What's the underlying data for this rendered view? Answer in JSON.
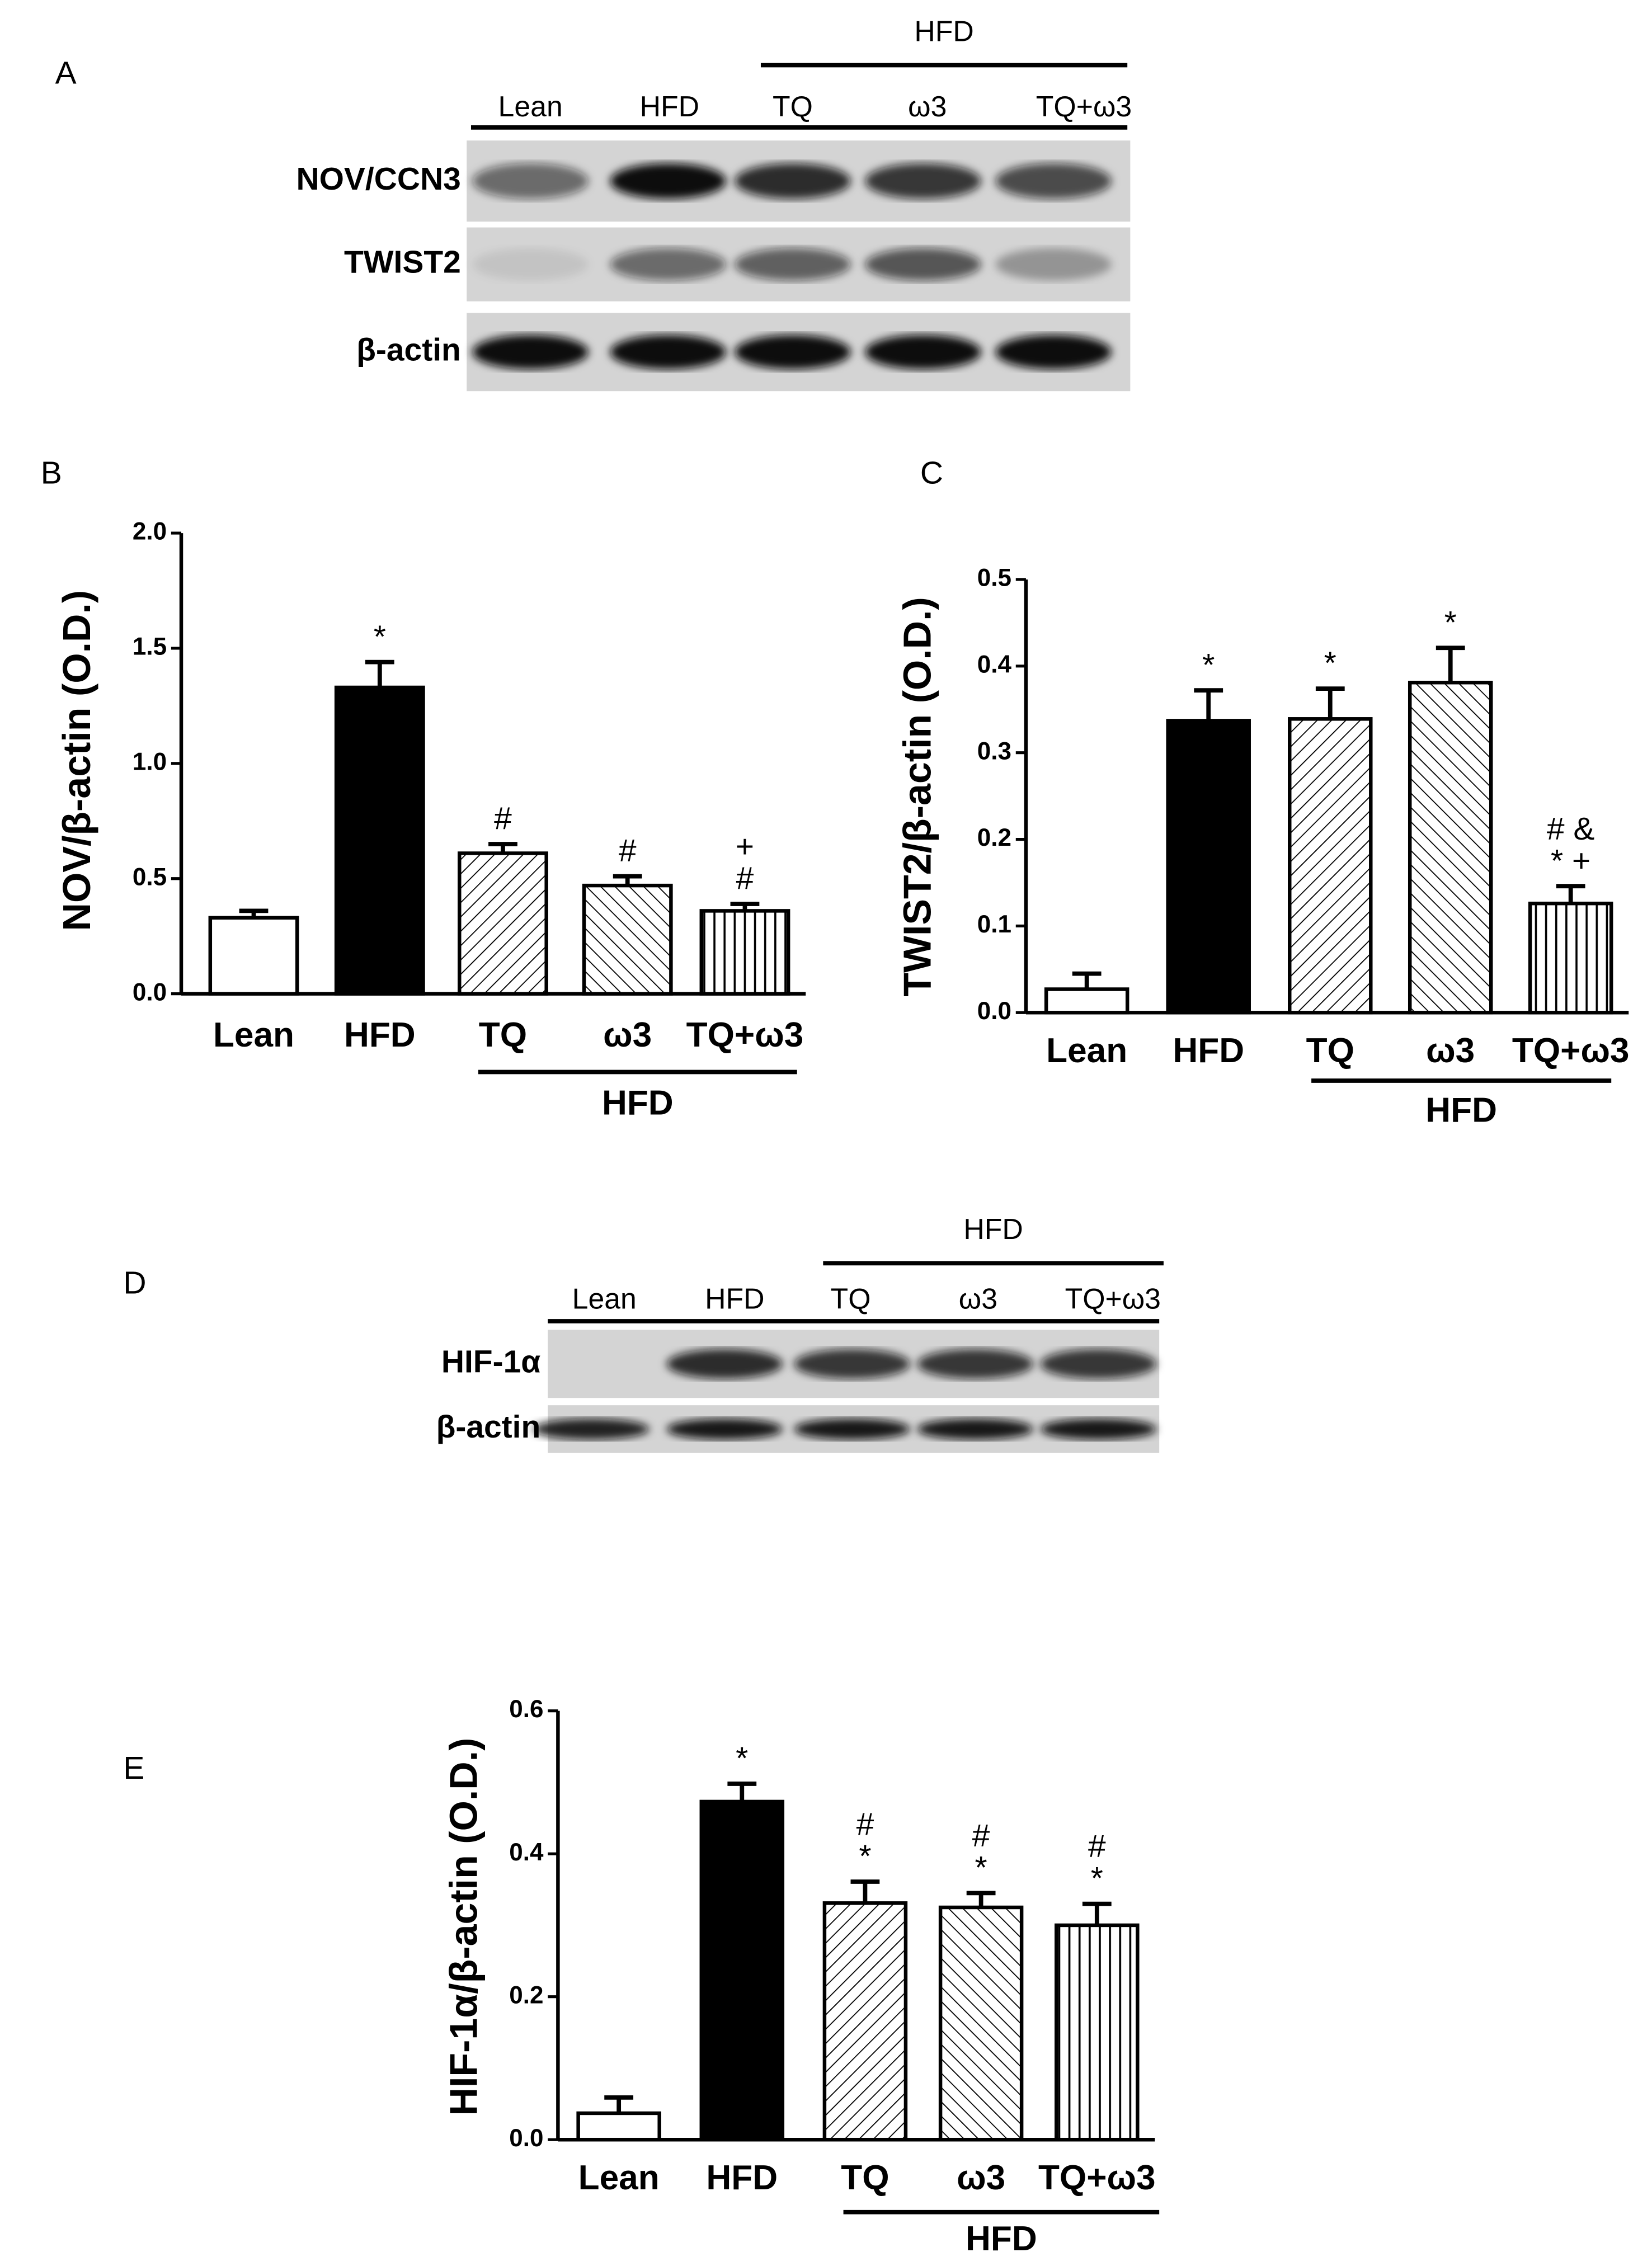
{
  "panel_labels": [
    "A",
    "B",
    "C",
    "D",
    "E"
  ],
  "blots": [
    {
      "group": "HFD",
      "lanes": [
        "Lean",
        "HFD",
        "TQ",
        "ω3",
        "TQ+ω3"
      ],
      "rows": [
        "NOV/CCN3",
        "TWIST2",
        "β-actin"
      ]
    },
    {
      "group": "HFD",
      "lanes": [
        "Lean",
        "HFD",
        "TQ",
        "ω3",
        "TQ+ω3"
      ],
      "rows": [
        "HIF-1α",
        "β-actin"
      ]
    }
  ],
  "chart_data": [
    {
      "type": "bar",
      "y_label": "NOV/β-actin (O.D.)",
      "categories": [
        "Lean",
        "HFD",
        "TQ",
        "ω3",
        "TQ+ω3"
      ],
      "values": [
        0.33,
        1.33,
        0.61,
        0.47,
        0.36
      ],
      "errors": [
        0.03,
        0.11,
        0.04,
        0.04,
        0.03
      ],
      "annotations": [
        null,
        [
          "*"
        ],
        [
          "#"
        ],
        [
          "#"
        ],
        [
          "+",
          "#"
        ]
      ],
      "group_label": "HFD",
      "fills": [
        "white",
        "black",
        "hatch-up",
        "hatch-down",
        "vertical"
      ],
      "ylim": [
        0,
        2.0
      ],
      "yticks": [
        {
          "value": 0,
          "label": "0.0"
        },
        {
          "value": 0.5,
          "label": "0.5"
        },
        {
          "value": 1,
          "label": "1.0"
        },
        {
          "value": 1.5,
          "label": "1.5"
        },
        {
          "value": 2,
          "label": "2.0"
        }
      ]
    },
    {
      "type": "bar",
      "y_label": "TWIST2/β-actin (O.D.)",
      "categories": [
        "Lean",
        "HFD",
        "TQ",
        "ω3",
        "TQ+ω3"
      ],
      "values": [
        0.027,
        0.337,
        0.339,
        0.381,
        0.126
      ],
      "errors": [
        0.018,
        0.035,
        0.035,
        0.04,
        0.02
      ],
      "annotations": [
        null,
        [
          "*"
        ],
        [
          "*"
        ],
        [
          "*"
        ],
        [
          "# &",
          "* +"
        ]
      ],
      "group_label": "HFD",
      "fills": [
        "white",
        "black",
        "hatch-up",
        "hatch-down",
        "vertical"
      ],
      "ylim": [
        0,
        0.5
      ],
      "yticks": [
        {
          "value": 0,
          "label": "0.0"
        },
        0.1,
        0.2,
        0.3,
        0.4,
        0.5
      ]
    },
    {
      "type": "bar",
      "y_label": "HIF-1α/β-actin (O.D.)",
      "categories": [
        "Lean",
        "HFD",
        "TQ",
        "ω3",
        "TQ+ω3"
      ],
      "values": [
        0.037,
        0.473,
        0.331,
        0.325,
        0.3
      ],
      "errors": [
        0.022,
        0.025,
        0.03,
        0.02,
        0.03
      ],
      "annotations": [
        null,
        [
          "*"
        ],
        [
          "#",
          "*"
        ],
        [
          "#",
          "*"
        ],
        [
          "#",
          "*"
        ]
      ],
      "group_label": "HFD",
      "fills": [
        "white",
        "black",
        "hatch-up",
        "hatch-down",
        "vertical"
      ],
      "ylim": [
        0,
        0.6
      ],
      "yticks": [
        {
          "value": 0,
          "label": "0.0"
        },
        0.2,
        0.4,
        0.6
      ]
    }
  ]
}
